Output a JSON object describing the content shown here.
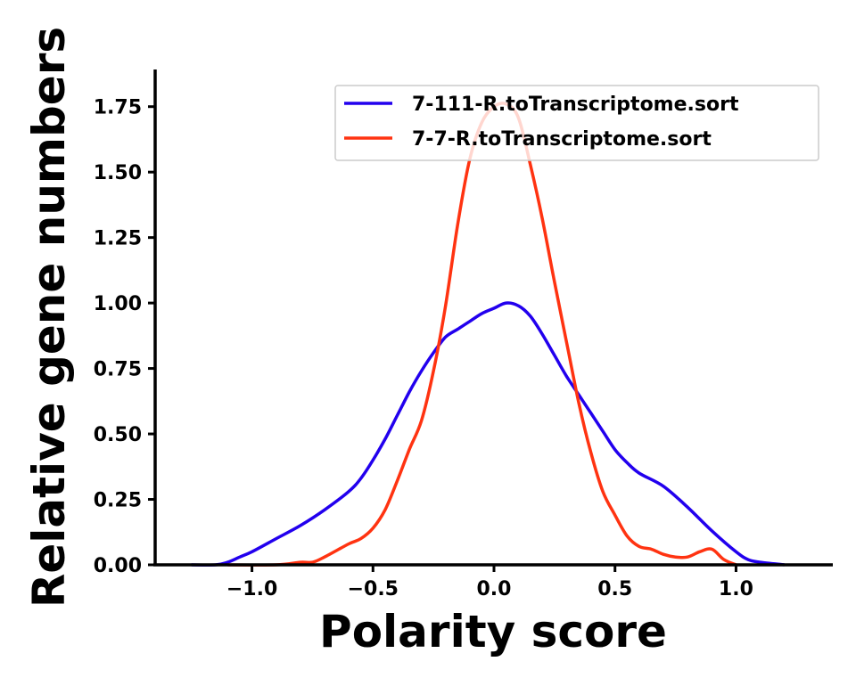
{
  "chart_data": {
    "type": "line",
    "xlabel": "Polarity score",
    "ylabel": "Relative gene numbers",
    "xlim": [
      -1.4,
      1.4
    ],
    "ylim": [
      0,
      1.88
    ],
    "xticks": [
      -1.0,
      -0.5,
      0.0,
      0.5,
      1.0
    ],
    "xtick_labels": [
      "−1.0",
      "−0.5",
      "0.0",
      "0.5",
      "1.0"
    ],
    "yticks": [
      0.0,
      0.25,
      0.5,
      0.75,
      1.0,
      1.25,
      1.5,
      1.75
    ],
    "ytick_labels": [
      "0.00",
      "0.25",
      "0.50",
      "0.75",
      "1.00",
      "1.25",
      "1.50",
      "1.75"
    ],
    "grid": false,
    "legend_position": "top-right",
    "series": [
      {
        "name": "7-111-R.toTranscriptome.sort",
        "color": "#2200ee",
        "x": [
          -1.25,
          -1.15,
          -1.1,
          -1.05,
          -1.0,
          -0.9,
          -0.8,
          -0.7,
          -0.6,
          -0.55,
          -0.5,
          -0.45,
          -0.4,
          -0.35,
          -0.3,
          -0.25,
          -0.2,
          -0.15,
          -0.1,
          -0.05,
          0.0,
          0.05,
          0.1,
          0.15,
          0.2,
          0.25,
          0.3,
          0.35,
          0.4,
          0.45,
          0.5,
          0.55,
          0.6,
          0.7,
          0.8,
          0.9,
          1.0,
          1.05,
          1.1,
          1.2
        ],
        "y": [
          0.0,
          0.0,
          0.01,
          0.03,
          0.05,
          0.1,
          0.15,
          0.21,
          0.28,
          0.33,
          0.4,
          0.48,
          0.57,
          0.66,
          0.74,
          0.81,
          0.87,
          0.9,
          0.93,
          0.96,
          0.98,
          1.0,
          0.99,
          0.95,
          0.88,
          0.8,
          0.72,
          0.65,
          0.58,
          0.51,
          0.44,
          0.39,
          0.35,
          0.3,
          0.22,
          0.13,
          0.05,
          0.02,
          0.01,
          0.0
        ]
      },
      {
        "name": "7-7-R.toTranscriptome.sort",
        "color": "#ff3311",
        "x": [
          -1.1,
          -0.9,
          -0.8,
          -0.75,
          -0.7,
          -0.6,
          -0.55,
          -0.5,
          -0.45,
          -0.4,
          -0.35,
          -0.3,
          -0.25,
          -0.2,
          -0.15,
          -0.1,
          -0.05,
          0.0,
          0.05,
          0.1,
          0.15,
          0.2,
          0.25,
          0.3,
          0.35,
          0.4,
          0.45,
          0.5,
          0.55,
          0.6,
          0.65,
          0.7,
          0.75,
          0.8,
          0.85,
          0.9,
          0.95,
          1.0
        ],
        "y": [
          0.0,
          0.0,
          0.01,
          0.01,
          0.03,
          0.08,
          0.1,
          0.14,
          0.21,
          0.32,
          0.44,
          0.55,
          0.74,
          0.99,
          1.3,
          1.55,
          1.69,
          1.75,
          1.76,
          1.71,
          1.53,
          1.32,
          1.08,
          0.85,
          0.62,
          0.43,
          0.28,
          0.19,
          0.11,
          0.07,
          0.06,
          0.04,
          0.03,
          0.03,
          0.05,
          0.06,
          0.02,
          0.0
        ]
      }
    ]
  }
}
